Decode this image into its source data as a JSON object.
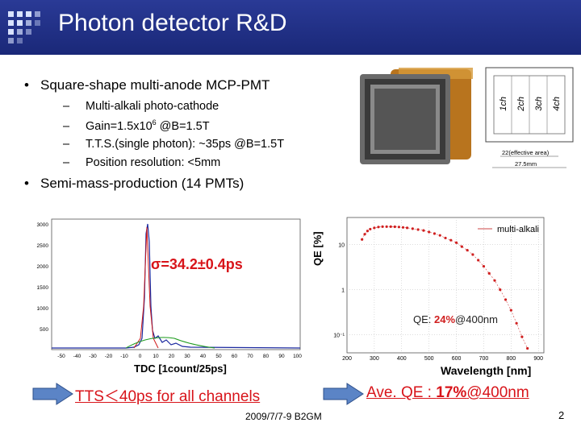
{
  "title": "Photon detector R&D",
  "bullets": {
    "b1": "Square-shape multi-anode MCP-PMT",
    "b1_subs": [
      "Multi-alkali photo-cathode",
      "Gain=1.5x10",
      "6",
      " @B=1.5T",
      "T.T.S.(single photon): ~35ps  @B=1.5T",
      "Position resolution: <5mm"
    ],
    "b2": "Semi-mass-production (14 PMTs)"
  },
  "drawing": {
    "channels": [
      "1ch",
      "2ch",
      "3ch",
      "4ch"
    ],
    "dim_effective": "22(effective area)",
    "dim_outer": "27.5mm"
  },
  "tts_plot": {
    "sigma": "σ=34.2±0.4ps",
    "x_ticks": [
      "-50",
      "-40",
      "-30",
      "-20",
      "-10",
      "0",
      "10",
      "20",
      "30",
      "40",
      "50",
      "60",
      "70",
      "80",
      "90",
      "100"
    ],
    "y_ticks": [
      "3000",
      "2500",
      "2000",
      "1500",
      "1000",
      "500"
    ],
    "xlabel": "TDC [1count/25ps]"
  },
  "chart_data": {
    "type": "scatter",
    "title": "",
    "xlabel": "Wavelength [nm]",
    "ylabel": "QE [%]",
    "x_ticks": [
      "200",
      "300",
      "400",
      "500",
      "600",
      "700",
      "800",
      "900"
    ],
    "y_ticks": [
      "10",
      "1",
      "10⁻¹"
    ],
    "y_scale": "log",
    "legend": "multi-alkali",
    "series": [
      {
        "name": "multi-alkali",
        "x": [
          255,
          265,
          275,
          285,
          300,
          315,
          330,
          345,
          360,
          375,
          390,
          405,
          420,
          440,
          460,
          480,
          500,
          520,
          540,
          560,
          580,
          600,
          620,
          640,
          660,
          680,
          700,
          720,
          740,
          760,
          780,
          800,
          820,
          840,
          860
        ],
        "y": [
          13,
          17,
          20,
          22,
          23.5,
          24.5,
          25,
          25,
          25,
          24.8,
          24.5,
          24,
          23.5,
          22.5,
          21.5,
          20.5,
          19,
          17.5,
          16,
          14,
          12.5,
          11,
          9,
          7.5,
          6,
          4.5,
          3.3,
          2.3,
          1.6,
          1.0,
          0.6,
          0.35,
          0.18,
          0.09,
          0.05
        ]
      }
    ],
    "annotation": {
      "prefix": "QE: ",
      "value": "24%",
      "suffix": "@400nm"
    }
  },
  "results": {
    "left": "TTS＜40ps for all channels",
    "right_prefix": "Ave. QE : ",
    "right_value": "17%",
    "right_suffix": "@400nm"
  },
  "footer": "2009/7/7-9 B2GM",
  "page": "2"
}
